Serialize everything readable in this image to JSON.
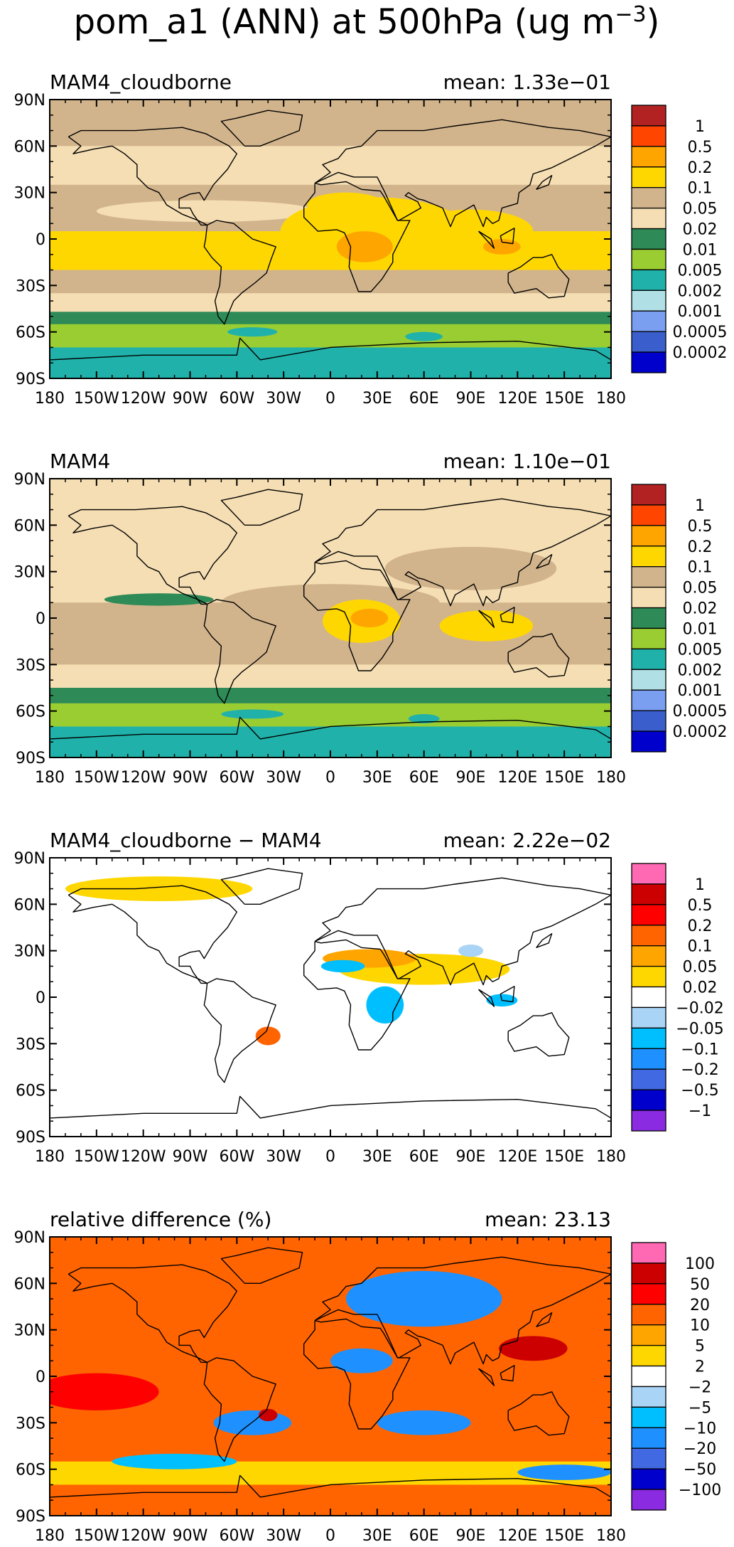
{
  "figure": {
    "title_main": "pom_a1 (ANN) at 500hPa (ug m",
    "title_sup": "−3",
    "title_close": ")"
  },
  "axes": {
    "lat_ticks": [
      "90N",
      "60N",
      "30N",
      "0",
      "30S",
      "60S",
      "90S"
    ],
    "lon_ticks": [
      "180",
      "150W",
      "120W",
      "90W",
      "60W",
      "30W",
      "0",
      "30E",
      "60E",
      "90E",
      "120E",
      "150E",
      "180"
    ]
  },
  "colors": {
    "abs": [
      "#b22222",
      "#ff4500",
      "#ffa500",
      "#ffd700",
      "#d2b48c",
      "#f5deb3",
      "#2e8b57",
      "#9acd32",
      "#20b2aa",
      "#b0e0e6",
      "#7b9ff0",
      "#3a5fcd",
      "#0000cd"
    ],
    "diff": [
      "#ff69b4",
      "#cc0000",
      "#ff0000",
      "#ff6400",
      "#ffa500",
      "#ffd700",
      "#ffffff",
      "#aad4f5",
      "#00bfff",
      "#1e90ff",
      "#4169e1",
      "#0000cd",
      "#8a2be2"
    ]
  },
  "chart_data": [
    {
      "type": "heatmap",
      "title": "MAM4_cloudborne",
      "mean_label": "mean: 1.33e−01",
      "xlim": [
        -180,
        180
      ],
      "ylim": [
        -90,
        90
      ],
      "legend_labels": [
        "1",
        "0.5",
        "0.2",
        "0.1",
        "0.05",
        "0.02",
        "0.01",
        "0.005",
        "0.002",
        "0.001",
        "0.0005",
        "0.0002"
      ],
      "zonal_bands": [
        {
          "lat": [
            60,
            90
          ],
          "value": 0.1
        },
        {
          "lat": [
            35,
            60
          ],
          "value": 0.05
        },
        {
          "lat": [
            5,
            35
          ],
          "value": 0.1
        },
        {
          "lat": [
            -20,
            5
          ],
          "value": 0.2
        },
        {
          "lat": [
            -35,
            -20
          ],
          "value": 0.1
        },
        {
          "lat": [
            -47,
            -35
          ],
          "value": 0.05
        },
        {
          "lat": [
            -55,
            -47
          ],
          "value": 0.02
        },
        {
          "lat": [
            -70,
            -55
          ],
          "value": 0.01
        },
        {
          "lat": [
            -90,
            -70
          ],
          "value": 0.005
        }
      ]
    },
    {
      "type": "heatmap",
      "title": "MAM4",
      "mean_label": "mean: 1.10e−01",
      "xlim": [
        -180,
        180
      ],
      "ylim": [
        -90,
        90
      ],
      "legend_labels": [
        "1",
        "0.5",
        "0.2",
        "0.1",
        "0.05",
        "0.02",
        "0.01",
        "0.005",
        "0.002",
        "0.001",
        "0.0005",
        "0.0002"
      ],
      "zonal_bands": [
        {
          "lat": [
            30,
            90
          ],
          "value": 0.05
        },
        {
          "lat": [
            10,
            30
          ],
          "value": 0.05
        },
        {
          "lat": [
            -20,
            10
          ],
          "value": 0.1
        },
        {
          "lat": [
            -30,
            -20
          ],
          "value": 0.1
        },
        {
          "lat": [
            -45,
            -30
          ],
          "value": 0.05
        },
        {
          "lat": [
            -55,
            -45
          ],
          "value": 0.02
        },
        {
          "lat": [
            -70,
            -55
          ],
          "value": 0.01
        },
        {
          "lat": [
            -90,
            -70
          ],
          "value": 0.005
        }
      ]
    },
    {
      "type": "heatmap",
      "title": "MAM4_cloudborne − MAM4",
      "mean_label": "mean: 2.22e−02",
      "xlim": [
        -180,
        180
      ],
      "ylim": [
        -90,
        90
      ],
      "legend_labels": [
        "1",
        "0.5",
        "0.2",
        "0.1",
        "0.05",
        "0.02",
        "−0.02",
        "−0.05",
        "−0.1",
        "−0.2",
        "−0.5",
        "−1"
      ],
      "zonal_bands": [
        {
          "lat": [
            60,
            90
          ],
          "value": 0.02
        },
        {
          "lat": [
            35,
            60
          ],
          "value": 0.0
        },
        {
          "lat": [
            -40,
            35
          ],
          "value": 0.02
        },
        {
          "lat": [
            -90,
            -40
          ],
          "value": 0.0
        }
      ]
    },
    {
      "type": "heatmap",
      "title": "relative difference (%)",
      "mean_label": "mean: 23.13",
      "xlim": [
        -180,
        180
      ],
      "ylim": [
        -90,
        90
      ],
      "legend_labels": [
        "100",
        "50",
        "20",
        "10",
        "5",
        "2",
        "−2",
        "−5",
        "−10",
        "−20",
        "−50",
        "−100"
      ],
      "zonal_bands": [
        {
          "lat": [
            -55,
            90
          ],
          "value": 20
        },
        {
          "lat": [
            -70,
            -55
          ],
          "value": 5
        },
        {
          "lat": [
            -90,
            -70
          ],
          "value": 20
        }
      ]
    }
  ]
}
